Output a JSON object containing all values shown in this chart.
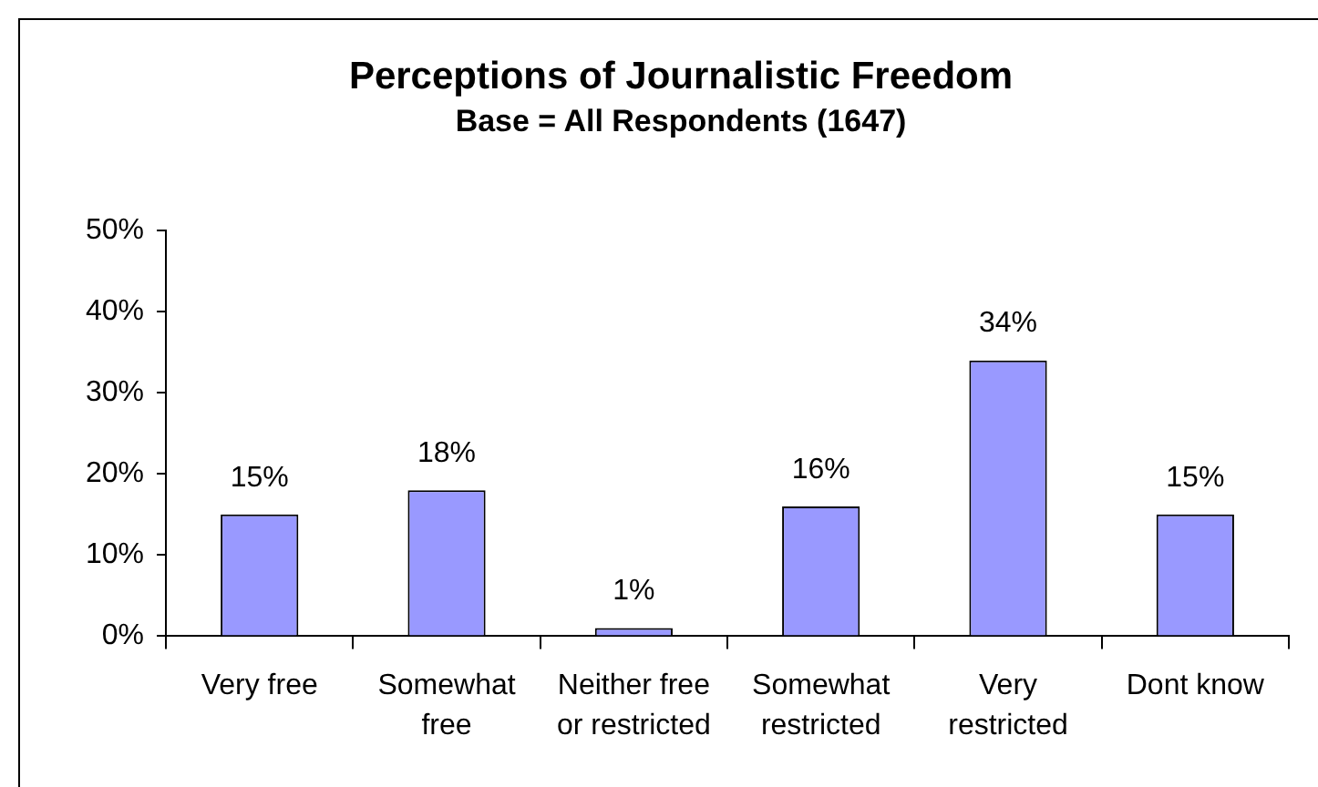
{
  "chart_data": {
    "type": "bar",
    "title": "Perceptions of Journalistic Freedom",
    "subtitle": "Base = All Respondents (1647)",
    "categories": [
      "Very free",
      "Somewhat free",
      "Neither free or restricted",
      "Somewhat restricted",
      "Very restricted",
      "Dont know"
    ],
    "values": [
      15,
      18,
      1,
      16,
      34,
      15
    ],
    "color": "#9999ff",
    "value_labels": [
      "15%",
      "18%",
      "1%",
      "16%",
      "34%",
      "15%"
    ],
    "ylim": [
      0,
      50
    ],
    "yticks": [
      {
        "value": 0,
        "label": "0%"
      },
      {
        "value": 10,
        "label": "10%"
      },
      {
        "value": 20,
        "label": "20%"
      },
      {
        "value": 30,
        "label": "30%"
      },
      {
        "value": 40,
        "label": "40%"
      },
      {
        "value": 50,
        "label": "50%"
      }
    ]
  }
}
